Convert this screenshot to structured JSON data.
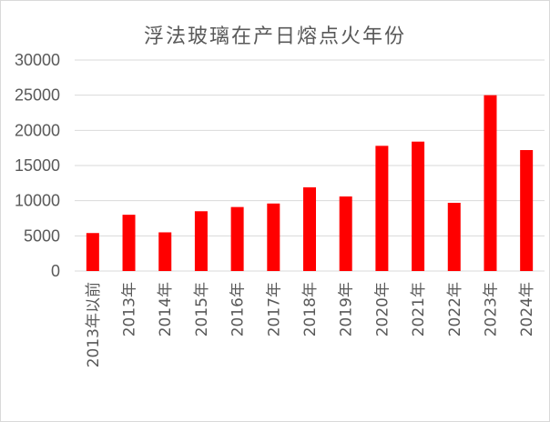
{
  "chart_data": {
    "type": "bar",
    "title": "浮法玻璃在产日熔点火年份",
    "xlabel": "",
    "ylabel": "",
    "categories": [
      "2013年以前",
      "2013年",
      "2014年",
      "2015年",
      "2016年",
      "2017年",
      "2018年",
      "2019年",
      "2020年",
      "2021年",
      "2022年",
      "2023年",
      "2024年"
    ],
    "values": [
      5400,
      8000,
      5500,
      8500,
      9100,
      9600,
      11900,
      10600,
      17800,
      18400,
      9700,
      25000,
      17200
    ],
    "ylim": [
      0,
      30000
    ],
    "yticks": [
      "0",
      "5000",
      "10000",
      "15000",
      "20000",
      "25000",
      "30000"
    ],
    "grid": true,
    "legend": "none",
    "bar_color": "#ff0000",
    "grid_color": "#d9d9d9"
  }
}
